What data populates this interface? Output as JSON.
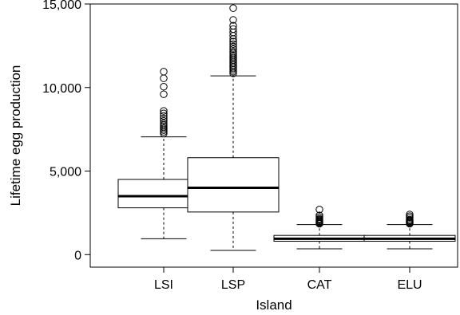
{
  "chart_data": {
    "type": "box",
    "xlabel": "Island",
    "ylabel": "Lifetime egg production",
    "ylim": [
      -750,
      15000
    ],
    "yticks": [
      0,
      5000,
      10000,
      15000
    ],
    "ytick_labels": [
      "0",
      "5,000",
      "10,000",
      "15,000"
    ],
    "categories": [
      "LSI",
      "LSP",
      "CAT",
      "ELU"
    ],
    "boxes": [
      {
        "category": "LSI",
        "whisker_low": 950,
        "q1": 2800,
        "median": 3500,
        "q3": 4500,
        "whisker_high": 7050,
        "outliers": [
          7250,
          7350,
          7450,
          7550,
          7650,
          7750,
          7850,
          8000,
          8150,
          8300,
          8450,
          8600,
          9600,
          10050,
          10550,
          10950
        ]
      },
      {
        "category": "LSP",
        "whisker_low": 250,
        "q1": 2550,
        "median": 4000,
        "q3": 5800,
        "whisker_high": 10700,
        "outliers": [
          10850,
          10950,
          11050,
          11150,
          11250,
          11350,
          11450,
          11550,
          11650,
          11750,
          11850,
          11950,
          12050,
          12150,
          12300,
          12450,
          12600,
          12750,
          12900,
          13100,
          13300,
          13500,
          13700,
          14050,
          14750
        ]
      },
      {
        "category": "CAT",
        "whisker_low": 350,
        "q1": 800,
        "median": 950,
        "q3": 1150,
        "whisker_high": 1800,
        "outliers": [
          1850,
          1900,
          1950,
          2000,
          2050,
          2100,
          2150,
          2250,
          2350,
          2700
        ]
      },
      {
        "category": "ELU",
        "whisker_low": 350,
        "q1": 800,
        "median": 950,
        "q3": 1150,
        "whisker_high": 1800,
        "outliers": [
          1850,
          1900,
          1950,
          2000,
          2050,
          2100,
          2200,
          2300,
          2400
        ]
      }
    ],
    "grid": false,
    "legend": "none"
  }
}
